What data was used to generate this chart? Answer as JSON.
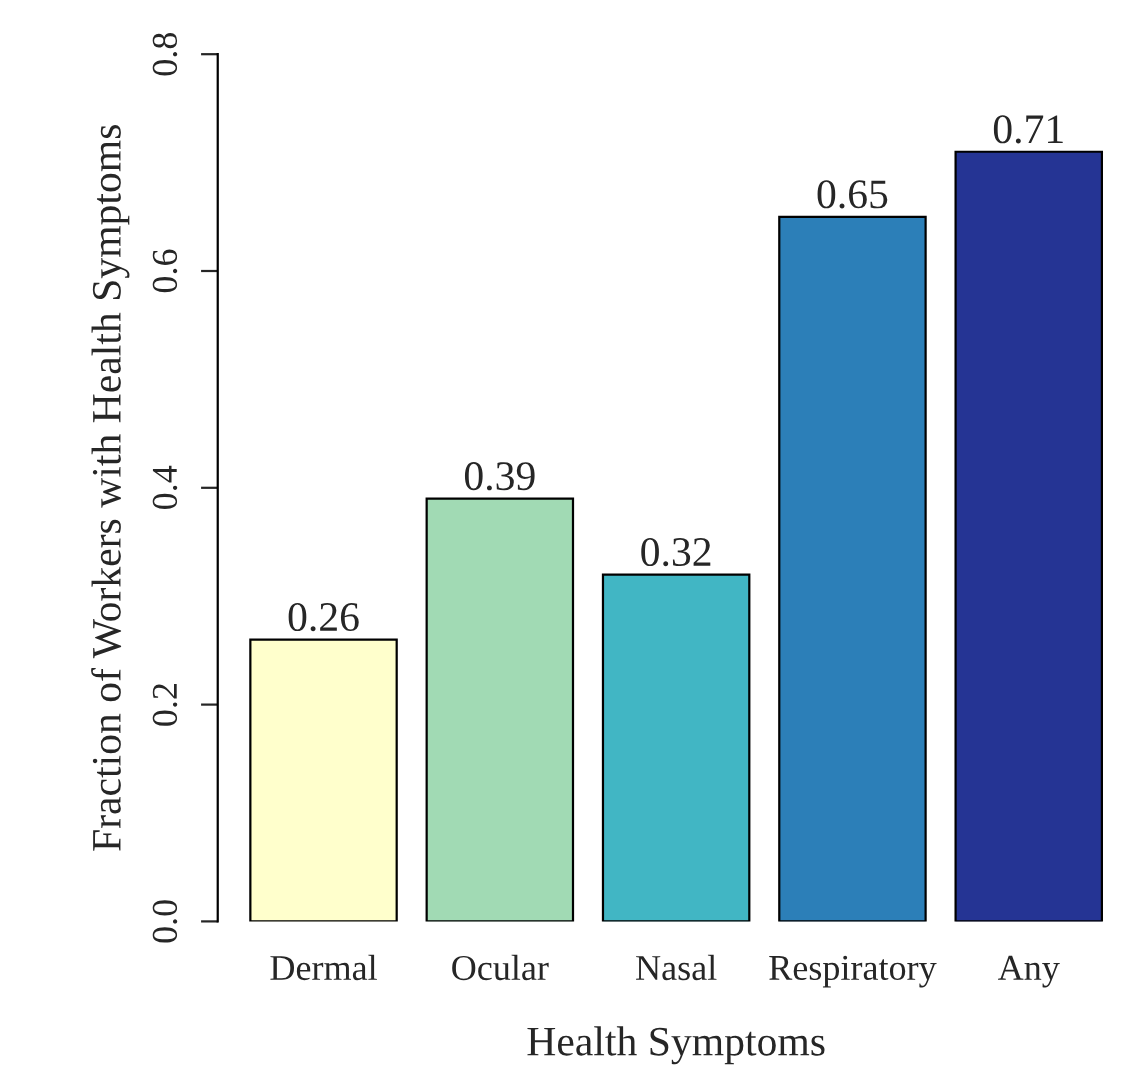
{
  "chart_data": {
    "type": "bar",
    "xlabel": "Health Symptoms",
    "ylabel": "Fraction of Workers with Health Symptoms",
    "categories": [
      "Dermal",
      "Ocular",
      "Nasal",
      "Respiratory",
      "Any"
    ],
    "values": [
      0.26,
      0.39,
      0.32,
      0.65,
      0.71
    ],
    "colors": [
      "#ffffcc",
      "#a1dab4",
      "#41b6c4",
      "#2c7fb8",
      "#253494"
    ],
    "ylim": [
      0,
      0.8
    ],
    "yticks": [
      {
        "value": 0,
        "label": "0.0"
      },
      {
        "value": 0.2,
        "label": "0.2"
      },
      {
        "value": 0.4,
        "label": "0.4"
      },
      {
        "value": 0.6,
        "label": "0.6"
      },
      {
        "value": 0.8,
        "label": "0.8"
      }
    ],
    "data_labels": true,
    "grid": false,
    "legend": false
  }
}
